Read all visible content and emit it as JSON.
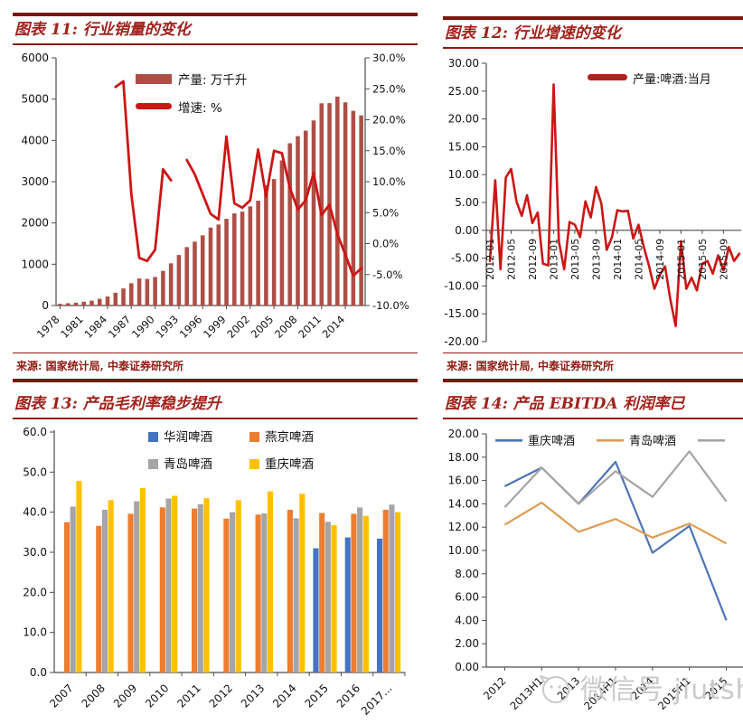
{
  "watermark": {
    "text": "微信号 jiutsh"
  },
  "source_note": "来源: 国家统计局, 中泰证券研究所",
  "chart_data": [
    {
      "id": "chart11",
      "type": "bar",
      "title": "图表 11: 行业销量的变化",
      "categories": [
        "1978",
        "1979",
        "1980",
        "1981",
        "1982",
        "1983",
        "1984",
        "1985",
        "1986",
        "1987",
        "1988",
        "1989",
        "1990",
        "1991",
        "1992",
        "1993",
        "1994",
        "1995",
        "1996",
        "1997",
        "1998",
        "1999",
        "2000",
        "2001",
        "2002",
        "2003",
        "2004",
        "2005",
        "2006",
        "2007",
        "2008",
        "2009",
        "2010",
        "2011",
        "2012",
        "2013",
        "2014",
        "2015",
        "2016"
      ],
      "x_label_every": 3,
      "series": [
        {
          "name": "产量: 万千升",
          "type": "bar",
          "axis": "left",
          "color": "#ad4f46",
          "values": [
            40,
            56,
            69,
            91,
            117,
            163,
            218,
            310,
            413,
            540,
            654,
            643,
            692,
            838,
            1021,
            1225,
            1415,
            1546,
            1700,
            1889,
            1963,
            2099,
            2231,
            2274,
            2402,
            2540,
            2910,
            3062,
            3515,
            3931,
            4103,
            4236,
            4483,
            4899,
            4902,
            5062,
            4922,
            4716,
            4606
          ]
        },
        {
          "name": "增速: %",
          "type": "line",
          "axis": "right",
          "color": "#cc1616",
          "values": [
            null,
            null,
            null,
            null,
            null,
            null,
            null,
            25.3,
            26.2,
            8.0,
            -2.3,
            -2.8,
            -1.0,
            12.0,
            10.2,
            null,
            13.5,
            11.2,
            8.0,
            4.8,
            3.9,
            17.3,
            6.5,
            5.8,
            7.0,
            15.2,
            7.6,
            15.0,
            14.6,
            9.0,
            5.5,
            7.0,
            11.4,
            4.6,
            6.3,
            1.5,
            -1.8,
            -5.2,
            -4.0
          ]
        }
      ],
      "left_axis": {
        "min": 0,
        "max": 6000,
        "tick_labels": [
          "0",
          "1000",
          "2000",
          "3000",
          "4000",
          "5000",
          "6000"
        ]
      },
      "right_axis": {
        "min": -10,
        "max": 30,
        "tick_labels": [
          "-10.0%",
          "-5.0%",
          "0.0%",
          "5.0%",
          "10.0%",
          "15.0%",
          "20.0%",
          "25.0%",
          "30.0%"
        ]
      },
      "legend_position": "top-center-inside",
      "grid": false
    },
    {
      "id": "chart12",
      "type": "line",
      "title": "图表 12: 行业增速的变化",
      "legend_label": "产量:啤酒:当月",
      "line_color": "#cc1616",
      "x_tick_labels": [
        "2012-01",
        "2012-05",
        "2012-09",
        "2013-01",
        "2013-05",
        "2013-09",
        "2014-01",
        "2014-05",
        "2014-09",
        "2015-01",
        "2015-05",
        "2015-09"
      ],
      "x_label_every": 4,
      "x": [
        "2012-01",
        "2012-02",
        "2012-03",
        "2012-04",
        "2012-05",
        "2012-06",
        "2012-07",
        "2012-08",
        "2012-09",
        "2012-10",
        "2012-11",
        "2012-12",
        "2013-01",
        "2013-02",
        "2013-03",
        "2013-04",
        "2013-05",
        "2013-06",
        "2013-07",
        "2013-08",
        "2013-09",
        "2013-10",
        "2013-11",
        "2013-12",
        "2014-01",
        "2014-02",
        "2014-03",
        "2014-04",
        "2014-05",
        "2014-06",
        "2014-07",
        "2014-08",
        "2014-09",
        "2014-10",
        "2014-11",
        "2014-12",
        "2015-01",
        "2015-02",
        "2015-03",
        "2015-04",
        "2015-05",
        "2015-06",
        "2015-07",
        "2015-08",
        "2015-09",
        "2015-10",
        "2015-11",
        "2015-12"
      ],
      "values": [
        -5.5,
        9.0,
        -7.0,
        9.5,
        11.0,
        5.2,
        2.6,
        6.3,
        1.3,
        3.2,
        -6.0,
        -6.3,
        26.2,
        -2.0,
        -7.0,
        1.5,
        1.0,
        -1.2,
        5.2,
        2.3,
        7.8,
        4.8,
        -3.5,
        -1.2,
        3.6,
        3.4,
        3.5,
        -1.5,
        1.0,
        -3.0,
        -6.5,
        -10.5,
        -8.0,
        -6.5,
        -12.5,
        -17.2,
        -2.0,
        -10.5,
        -8.5,
        -10.8,
        -6.0,
        -5.5,
        -7.8,
        -4.5,
        -7.2,
        -3.0,
        -5.5,
        -4.2
      ],
      "y_axis": {
        "min": -20,
        "max": 30,
        "tick_labels": [
          "-20.00",
          "-15.00",
          "-10.00",
          "-5.00",
          "0.00",
          "5.00",
          "10.00",
          "15.00",
          "20.00",
          "25.00",
          "30.00"
        ]
      },
      "legend_position": "top-right",
      "grid": false
    },
    {
      "id": "chart13",
      "type": "bar",
      "title": "图表 13: 产品毛利率稳步提升",
      "categories": [
        "2007",
        "2008",
        "2009",
        "2010",
        "2011",
        "2012",
        "2013",
        "2014",
        "2015",
        "2016",
        "2017..."
      ],
      "series": [
        {
          "name": "华润啤酒",
          "color": "#4472c4",
          "values": [
            null,
            null,
            null,
            null,
            null,
            null,
            null,
            null,
            31.0,
            33.7,
            33.4
          ]
        },
        {
          "name": "燕京啤酒",
          "color": "#ed7d31",
          "values": [
            37.5,
            36.6,
            39.6,
            41.2,
            40.9,
            38.4,
            39.4,
            40.6,
            39.8,
            39.6,
            40.6
          ]
        },
        {
          "name": "青岛啤酒",
          "color": "#a5a5a5",
          "values": [
            41.4,
            40.6,
            42.7,
            43.4,
            42.0,
            40.0,
            39.7,
            38.5,
            37.6,
            41.2,
            41.9
          ]
        },
        {
          "name": "重庆啤酒",
          "color": "#ffc000",
          "values": [
            47.8,
            43.0,
            46.0,
            44.1,
            43.5,
            43.0,
            45.2,
            44.6,
            36.8,
            39.1,
            40.0
          ]
        }
      ],
      "y_axis": {
        "min": 0,
        "max": 60,
        "tick_labels": [
          "0.0",
          "10.0",
          "20.0",
          "30.0",
          "40.0",
          "50.0",
          "60.0"
        ]
      },
      "legend_position": "top-center-two-rows",
      "grid": false
    },
    {
      "id": "chart14",
      "type": "line",
      "title": "图表 14: 产品 EBITDA 利润率已",
      "categories": [
        "2012",
        "2013H1",
        "2013",
        "2014H1",
        "2014",
        "2015H1",
        "2015"
      ],
      "series": [
        {
          "name": "重庆啤酒",
          "color": "#4e74b8",
          "values": [
            15.5,
            17.1,
            14.0,
            17.6,
            9.8,
            12.1,
            4.0
          ]
        },
        {
          "name": "青岛啤酒",
          "color": "#dd9d55",
          "values": [
            12.2,
            14.1,
            11.6,
            12.7,
            11.1,
            12.3,
            10.6
          ]
        },
        {
          "name": "",
          "color": "#a5a5a5",
          "values": [
            13.7,
            17.1,
            14.0,
            16.8,
            14.6,
            18.5,
            14.2
          ]
        }
      ],
      "y_axis": {
        "min": 0,
        "max": 20,
        "tick_labels": [
          "0.00",
          "2.00",
          "4.00",
          "6.00",
          "8.00",
          "10.00",
          "12.00",
          "14.00",
          "16.00",
          "18.00",
          "20.00"
        ]
      },
      "legend_position": "top-inside",
      "grid": false
    }
  ]
}
